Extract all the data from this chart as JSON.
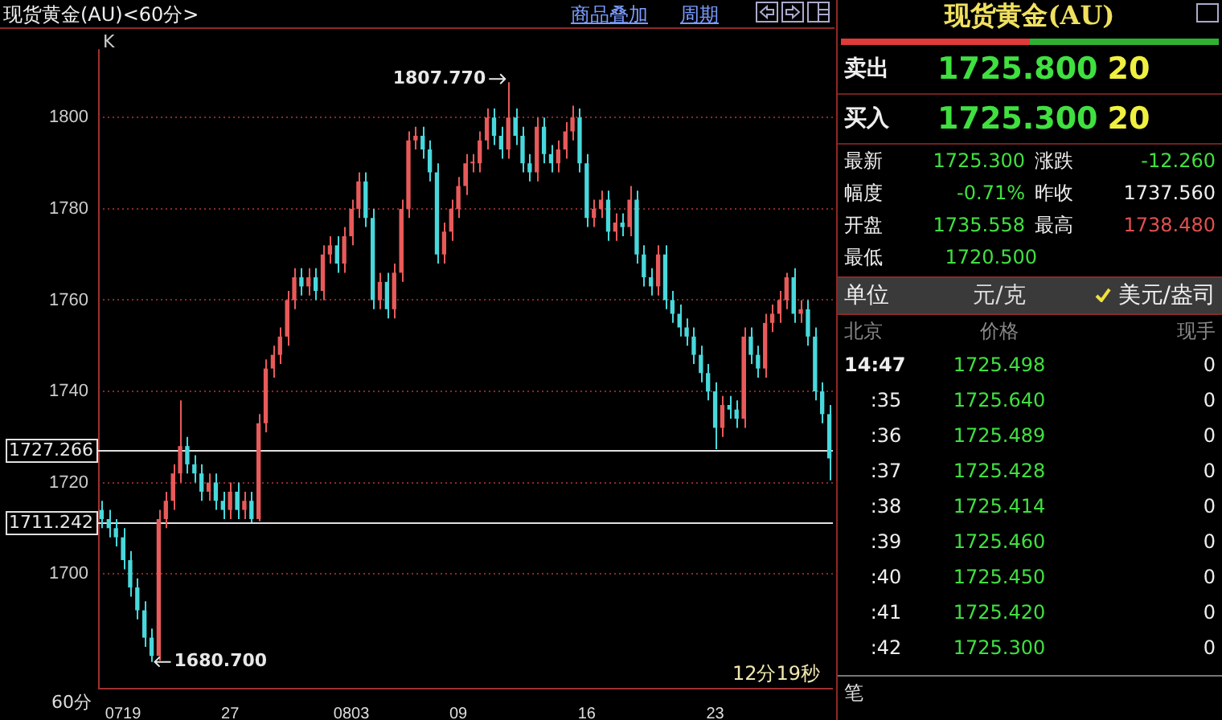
{
  "chart_data": {
    "type": "candlestick",
    "title": "现货黄金(AU)<60分>",
    "xlabel": "60分",
    "categories": [
      null,
      null,
      null,
      "0719",
      null,
      null,
      null,
      null,
      null,
      null,
      null,
      null,
      null,
      null,
      null,
      null,
      null,
      null,
      "27",
      null,
      null,
      null,
      null,
      null,
      null,
      null,
      null,
      null,
      null,
      null,
      null,
      null,
      null,
      null,
      null,
      "0803",
      null,
      null,
      null,
      null,
      null,
      null,
      null,
      null,
      null,
      null,
      null,
      null,
      null,
      null,
      "09",
      null,
      null,
      null,
      null,
      null,
      null,
      null,
      null,
      null,
      null,
      null,
      null,
      null,
      null,
      null,
      null,
      null,
      "16",
      null,
      null,
      null,
      null,
      null,
      null,
      null,
      null,
      null,
      null,
      null,
      null,
      null,
      null,
      null,
      null,
      null,
      "23",
      null,
      null,
      null,
      null,
      null,
      null,
      null,
      null,
      null,
      null,
      null,
      null,
      null,
      null,
      null,
      null
    ],
    "ohlc": [
      [
        1714,
        1716,
        1710,
        1712
      ],
      [
        1712,
        1714,
        1708,
        1710
      ],
      [
        1710,
        1712,
        1706,
        1708
      ],
      [
        1708,
        1710,
        1701,
        1703
      ],
      [
        1703,
        1705,
        1695,
        1697
      ],
      [
        1697,
        1699,
        1690,
        1692
      ],
      [
        1692,
        1694,
        1684,
        1686
      ],
      [
        1686,
        1688,
        1680.7,
        1682
      ],
      [
        1682,
        1714,
        1681,
        1712
      ],
      [
        1712,
        1718,
        1710,
        1716
      ],
      [
        1716,
        1724,
        1714,
        1722
      ],
      [
        1722,
        1738,
        1720,
        1728
      ],
      [
        1728,
        1730,
        1722,
        1724
      ],
      [
        1724,
        1726,
        1720,
        1722
      ],
      [
        1722,
        1724,
        1716,
        1718
      ],
      [
        1718,
        1722,
        1716,
        1720
      ],
      [
        1720,
        1722,
        1714,
        1716
      ],
      [
        1716,
        1718,
        1712,
        1714
      ],
      [
        1714,
        1720,
        1712,
        1718
      ],
      [
        1718,
        1720,
        1712,
        1714
      ],
      [
        1714,
        1718,
        1712,
        1716
      ],
      [
        1716,
        1718,
        1711.3,
        1712
      ],
      [
        1712,
        1735,
        1711.5,
        1733
      ],
      [
        1733,
        1747,
        1731,
        1745
      ],
      [
        1745,
        1750,
        1743,
        1748
      ],
      [
        1748,
        1754,
        1746,
        1752
      ],
      [
        1752,
        1762,
        1750,
        1760
      ],
      [
        1760,
        1767,
        1758,
        1765
      ],
      [
        1765,
        1767,
        1761,
        1763
      ],
      [
        1763,
        1767,
        1761,
        1765
      ],
      [
        1765,
        1767,
        1760,
        1762
      ],
      [
        1762,
        1772,
        1760,
        1770
      ],
      [
        1770,
        1774,
        1768,
        1772
      ],
      [
        1772,
        1774,
        1766,
        1768
      ],
      [
        1768,
        1776,
        1766,
        1774
      ],
      [
        1774,
        1782,
        1772,
        1780
      ],
      [
        1780,
        1788,
        1778,
        1786
      ],
      [
        1786,
        1788,
        1776,
        1778
      ],
      [
        1778,
        1780,
        1758,
        1760
      ],
      [
        1760,
        1766,
        1758,
        1764
      ],
      [
        1764,
        1766,
        1756,
        1758
      ],
      [
        1758,
        1768,
        1756,
        1766
      ],
      [
        1766,
        1782,
        1764,
        1780
      ],
      [
        1780,
        1797,
        1778,
        1795
      ],
      [
        1795,
        1798,
        1793,
        1796
      ],
      [
        1796,
        1798,
        1791,
        1793
      ],
      [
        1793,
        1795,
        1786,
        1788
      ],
      [
        1788,
        1790,
        1768,
        1770
      ],
      [
        1770,
        1777,
        1768,
        1775
      ],
      [
        1775,
        1782,
        1773,
        1780
      ],
      [
        1780,
        1787,
        1778,
        1785
      ],
      [
        1785,
        1792,
        1783,
        1790
      ],
      [
        1790,
        1792,
        1788,
        1790
      ],
      [
        1790,
        1797,
        1788,
        1795
      ],
      [
        1795,
        1802,
        1793,
        1800
      ],
      [
        1800,
        1802,
        1794,
        1796
      ],
      [
        1796,
        1798,
        1791,
        1793
      ],
      [
        1793,
        1807.77,
        1791,
        1800
      ],
      [
        1800,
        1802,
        1794,
        1796
      ],
      [
        1796,
        1798,
        1788,
        1790
      ],
      [
        1790,
        1792,
        1786,
        1788
      ],
      [
        1788,
        1800,
        1786,
        1798
      ],
      [
        1798,
        1800,
        1790,
        1792
      ],
      [
        1792,
        1794,
        1788,
        1790
      ],
      [
        1790,
        1795,
        1788,
        1793
      ],
      [
        1793,
        1799,
        1791,
        1797
      ],
      [
        1797,
        1802.6,
        1795,
        1800
      ],
      [
        1800,
        1802,
        1788,
        1790
      ],
      [
        1790,
        1792,
        1776,
        1778
      ],
      [
        1778,
        1782,
        1776,
        1780
      ],
      [
        1780,
        1784,
        1778,
        1782
      ],
      [
        1782,
        1784,
        1773,
        1775
      ],
      [
        1775,
        1779,
        1773,
        1777
      ],
      [
        1777,
        1779,
        1774,
        1776
      ],
      [
        1776,
        1785,
        1774,
        1782
      ],
      [
        1782,
        1784,
        1768,
        1770
      ],
      [
        1770,
        1772,
        1763,
        1765
      ],
      [
        1765,
        1767,
        1761,
        1763
      ],
      [
        1763,
        1772,
        1761,
        1770
      ],
      [
        1770,
        1772,
        1758,
        1760
      ],
      [
        1760,
        1762,
        1755,
        1757
      ],
      [
        1757,
        1759,
        1752,
        1754
      ],
      [
        1754,
        1756,
        1750,
        1752
      ],
      [
        1752,
        1754,
        1746,
        1748
      ],
      [
        1748,
        1750,
        1742,
        1744
      ],
      [
        1744,
        1746,
        1738,
        1740
      ],
      [
        1740,
        1742,
        1727.3,
        1732
      ],
      [
        1732,
        1739,
        1730,
        1737
      ],
      [
        1737,
        1739,
        1734,
        1736
      ],
      [
        1736,
        1738,
        1732,
        1734
      ],
      [
        1734,
        1754,
        1732,
        1752
      ],
      [
        1752,
        1754,
        1746,
        1748
      ],
      [
        1748,
        1750,
        1743,
        1745
      ],
      [
        1745,
        1757,
        1743,
        1755
      ],
      [
        1755,
        1759,
        1753,
        1757
      ],
      [
        1757,
        1762,
        1755,
        1760
      ],
      [
        1760,
        1766,
        1758,
        1765
      ],
      [
        1765,
        1767,
        1755,
        1757
      ],
      [
        1757,
        1760,
        1755,
        1758
      ],
      [
        1758,
        1760,
        1750,
        1752
      ],
      [
        1752,
        1754,
        1738,
        1740
      ],
      [
        1740,
        1742,
        1733,
        1735
      ],
      [
        1735,
        1737,
        1720.5,
        1725.3
      ]
    ],
    "colors": [
      "#48d8dc",
      "#48d8dc",
      "#48d8dc",
      "#48d8dc",
      "#48d8dc",
      "#48d8dc",
      "#48d8dc",
      "#48d8dc",
      "#e85a5a",
      "#e85a5a",
      "#e85a5a",
      "#e85a5a",
      "#48d8dc",
      "#48d8dc",
      "#48d8dc",
      "#e85a5a",
      "#48d8dc",
      "#48d8dc",
      "#e85a5a",
      "#48d8dc",
      "#e85a5a",
      "#48d8dc",
      "#e85a5a",
      "#e85a5a",
      "#e85a5a",
      "#e85a5a",
      "#e85a5a",
      "#e85a5a",
      "#48d8dc",
      "#e85a5a",
      "#48d8dc",
      "#e85a5a",
      "#e85a5a",
      "#48d8dc",
      "#e85a5a",
      "#e85a5a",
      "#e85a5a",
      "#48d8dc",
      "#48d8dc",
      "#e85a5a",
      "#48d8dc",
      "#e85a5a",
      "#e85a5a",
      "#e85a5a",
      "#e85a5a",
      "#48d8dc",
      "#48d8dc",
      "#48d8dc",
      "#e85a5a",
      "#e85a5a",
      "#e85a5a",
      "#e85a5a",
      "#e85a5a",
      "#e85a5a",
      "#e85a5a",
      "#48d8dc",
      "#48d8dc",
      "#e85a5a",
      "#48d8dc",
      "#48d8dc",
      "#48d8dc",
      "#e85a5a",
      "#48d8dc",
      "#48d8dc",
      "#e85a5a",
      "#e85a5a",
      "#e85a5a",
      "#48d8dc",
      "#48d8dc",
      "#e85a5a",
      "#e85a5a",
      "#48d8dc",
      "#e85a5a",
      "#48d8dc",
      "#e85a5a",
      "#48d8dc",
      "#48d8dc",
      "#48d8dc",
      "#e85a5a",
      "#48d8dc",
      "#48d8dc",
      "#48d8dc",
      "#48d8dc",
      "#48d8dc",
      "#48d8dc",
      "#48d8dc",
      "#48d8dc",
      "#e85a5a",
      "#48d8dc",
      "#48d8dc",
      "#e85a5a",
      "#48d8dc",
      "#48d8dc",
      "#e85a5a",
      "#e85a5a",
      "#e85a5a",
      "#e85a5a",
      "#48d8dc",
      "#e85a5a",
      "#48d8dc",
      "#48d8dc",
      "#48d8dc",
      "#48d8dc"
    ],
    "ylim": [
      1675,
      1815
    ],
    "yticks": [
      1700,
      1720,
      1740,
      1760,
      1780,
      1800
    ],
    "grid": "y",
    "ref_lines": [
      {
        "axis": "y",
        "value": 1727.266,
        "label": "1727.266",
        "color": "#e0e0e0"
      },
      {
        "axis": "y",
        "value": 1711.242,
        "label": "1711.242",
        "color": "#e0e0e0"
      }
    ],
    "annotations": [
      "K",
      "1807.770",
      "1680.700",
      "12分19秒",
      "商品叠加",
      "周期",
      "现货黄金(AU)",
      "卖出",
      "1725.800",
      "20",
      "买入",
      "1725.300",
      "20",
      "最新",
      "1725.300",
      "涨跌",
      "-12.260",
      "幅度",
      "-0.71%",
      "昨收",
      "1737.560",
      "开盘",
      "1735.558",
      "最高",
      "1738.480",
      "最低",
      "1720.500",
      "单位",
      "元/克",
      "美元/盎司",
      "北京",
      "价格",
      "现手",
      "14:47",
      "1725.498",
      "0",
      ":35",
      "1725.640",
      "0",
      ":36",
      "1725.489",
      "0",
      ":37",
      "1725.428",
      "0",
      ":38",
      "1725.414",
      "0",
      ":39",
      "1725.460",
      "0",
      ":40",
      "1725.450",
      "0",
      ":41",
      "1725.420",
      "0",
      ":42",
      "1725.300",
      "0",
      "笔"
    ]
  }
}
